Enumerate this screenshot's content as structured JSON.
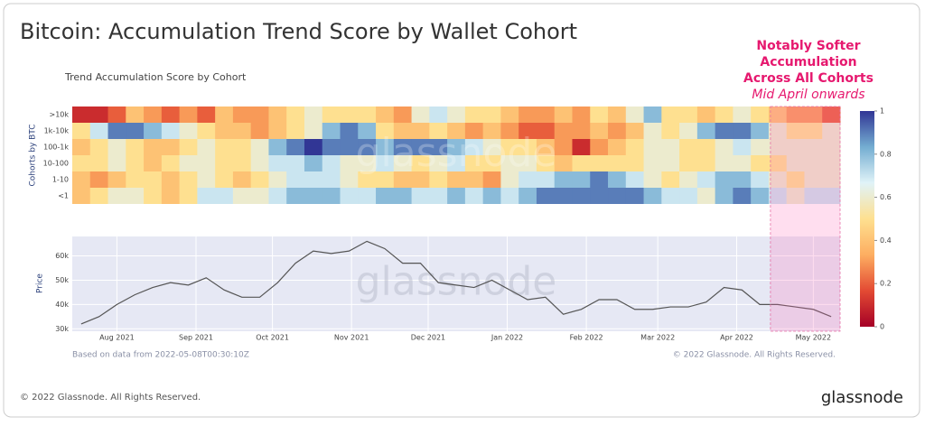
{
  "page_title": "Bitcoin: Accumulation Trend Score by Wallet Cohort",
  "footer": {
    "copyright": "© 2022 Glassnode. All Rights Reserved.",
    "logo": "glassnode"
  },
  "chart_data": [
    {
      "type": "heatmap",
      "title": "Trend Accumulation Score by Cohort",
      "y_label": "Cohorts by BTC",
      "watermark": "glassnode",
      "categories": [
        ">10k",
        "1k-10k",
        "100-1k",
        "10-100",
        "1-10",
        "<1"
      ],
      "colorscale": [
        "#a50026",
        "#e34a33",
        "#fdae61",
        "#fee090",
        "#e0f3f8",
        "#74add1",
        "#313695"
      ],
      "clim": [
        0,
        1
      ],
      "cticks": [
        0,
        0.2,
        0.4,
        0.6,
        0.8,
        1
      ],
      "rows": [
        [
          0.1,
          0.1,
          0.2,
          0.4,
          0.3,
          0.2,
          0.3,
          0.2,
          0.4,
          0.3,
          0.3,
          0.4,
          0.5,
          0.6,
          0.5,
          0.5,
          0.5,
          0.4,
          0.3,
          0.6,
          0.7,
          0.6,
          0.5,
          0.5,
          0.4,
          0.3,
          0.3,
          0.4,
          0.3,
          0.5,
          0.4,
          0.6,
          0.8,
          0.5,
          0.5,
          0.4,
          0.5,
          0.6,
          0.5,
          0.4,
          0.3,
          0.3,
          0.2
        ],
        [
          0.5,
          0.7,
          0.9,
          0.9,
          0.8,
          0.7,
          0.6,
          0.5,
          0.4,
          0.4,
          0.3,
          0.4,
          0.5,
          0.6,
          0.8,
          0.9,
          0.8,
          0.5,
          0.4,
          0.4,
          0.5,
          0.4,
          0.3,
          0.4,
          0.3,
          0.2,
          0.2,
          0.3,
          0.3,
          0.4,
          0.3,
          0.4,
          0.6,
          0.5,
          0.6,
          0.8,
          0.9,
          0.9,
          0.8,
          0.6,
          0.5,
          0.5,
          0.6
        ],
        [
          0.4,
          0.5,
          0.6,
          0.5,
          0.4,
          0.4,
          0.5,
          0.6,
          0.5,
          0.5,
          0.6,
          0.8,
          0.9,
          1.0,
          0.9,
          0.9,
          0.9,
          0.8,
          0.9,
          0.9,
          0.9,
          0.8,
          0.7,
          0.6,
          0.5,
          0.5,
          0.4,
          0.3,
          0.1,
          0.3,
          0.4,
          0.5,
          0.6,
          0.6,
          0.5,
          0.5,
          0.6,
          0.7,
          0.6,
          0.6,
          0.6,
          0.6,
          0.6
        ],
        [
          0.5,
          0.5,
          0.6,
          0.5,
          0.4,
          0.5,
          0.6,
          0.6,
          0.5,
          0.5,
          0.6,
          0.7,
          0.7,
          0.8,
          0.7,
          0.6,
          0.6,
          0.7,
          0.6,
          0.5,
          0.6,
          0.7,
          0.5,
          0.5,
          0.6,
          0.6,
          0.5,
          0.4,
          0.5,
          0.5,
          0.5,
          0.5,
          0.6,
          0.6,
          0.5,
          0.5,
          0.6,
          0.6,
          0.5,
          0.5,
          0.6,
          0.6,
          0.6
        ],
        [
          0.4,
          0.3,
          0.4,
          0.5,
          0.5,
          0.4,
          0.5,
          0.6,
          0.5,
          0.4,
          0.5,
          0.6,
          0.7,
          0.7,
          0.7,
          0.6,
          0.5,
          0.5,
          0.4,
          0.4,
          0.5,
          0.4,
          0.4,
          0.3,
          0.6,
          0.7,
          0.7,
          0.8,
          0.8,
          0.9,
          0.8,
          0.7,
          0.6,
          0.5,
          0.6,
          0.7,
          0.8,
          0.8,
          0.7,
          0.6,
          0.5,
          0.6,
          0.6
        ],
        [
          0.4,
          0.5,
          0.6,
          0.6,
          0.5,
          0.4,
          0.5,
          0.7,
          0.7,
          0.6,
          0.6,
          0.7,
          0.8,
          0.8,
          0.8,
          0.7,
          0.7,
          0.8,
          0.8,
          0.7,
          0.7,
          0.8,
          0.7,
          0.8,
          0.7,
          0.8,
          0.9,
          0.9,
          0.9,
          0.9,
          0.9,
          0.9,
          0.8,
          0.7,
          0.7,
          0.6,
          0.8,
          0.9,
          0.8,
          0.7,
          0.6,
          0.7,
          0.7
        ]
      ]
    },
    {
      "type": "line",
      "y_label": "Price",
      "watermark": "glassnode",
      "note": "Based on data from 2022-05-08T00:30:10Z",
      "copyright": "© 2022 Glassnode. All Rights Reserved.",
      "color": "#555555",
      "values": [
        32000,
        35000,
        40000,
        44000,
        47000,
        49000,
        48000,
        51000,
        46000,
        43000,
        43000,
        49000,
        57000,
        62000,
        61000,
        62000,
        66000,
        63000,
        57000,
        57000,
        49000,
        48000,
        47000,
        50000,
        46000,
        42000,
        43000,
        36000,
        38000,
        42000,
        42000,
        38000,
        38000,
        39000,
        39000,
        41000,
        47000,
        46000,
        40000,
        40000,
        39000,
        38000,
        35000
      ],
      "xlim": [
        -0.5,
        42.5
      ],
      "xticks": [
        {
          "value": 2,
          "label": "Aug 2021"
        },
        {
          "value": 6.43,
          "label": "Sep 2021"
        },
        {
          "value": 10.71,
          "label": "Oct 2021"
        },
        {
          "value": 15.14,
          "label": "Nov 2021"
        },
        {
          "value": 19.43,
          "label": "Dec 2021"
        },
        {
          "value": 23.86,
          "label": "Jan 2022"
        },
        {
          "value": 28.29,
          "label": "Feb 2022"
        },
        {
          "value": 32.29,
          "label": "Mar 2022"
        },
        {
          "value": 36.71,
          "label": "Apr 2022"
        },
        {
          "value": 41,
          "label": "May 2022"
        }
      ],
      "ylim": [
        29000,
        68000
      ],
      "yticks": [
        {
          "value": 30000,
          "label": "30k"
        },
        {
          "value": 40000,
          "label": "40k"
        },
        {
          "value": 50000,
          "label": "50k"
        },
        {
          "value": 60000,
          "label": "60k"
        }
      ],
      "grid": true
    }
  ],
  "annotation": {
    "lines": [
      "Notably Softer",
      "Accumulation",
      "Across All Cohorts"
    ],
    "sub": "Mid April onwards",
    "x_range": [
      38.6,
      42.5
    ]
  }
}
